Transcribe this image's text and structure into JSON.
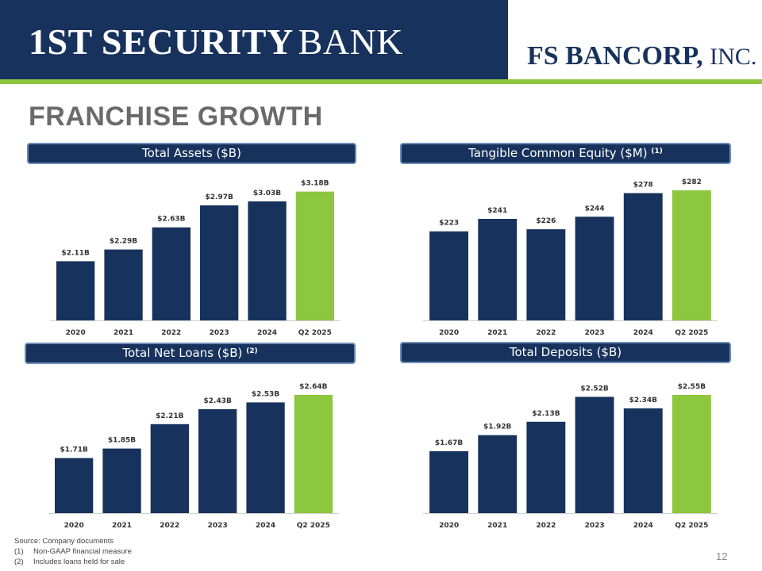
{
  "header": {
    "bank_logo_main": "1ST SECURITY",
    "bank_logo_word": "BANK",
    "corp_logo_main": "FS BANCORP,",
    "corp_logo_word": "INC."
  },
  "page_title": "FRANCHISE GROWTH",
  "colors": {
    "navy": "#17325c",
    "green": "#8dc63f",
    "header_border": "#6d8fb8"
  },
  "chart_data": [
    {
      "type": "bar",
      "title": "Total Assets ($B)",
      "title_note": "",
      "categories": [
        "2020",
        "2021",
        "2022",
        "2023",
        "2024",
        "Q2 2025"
      ],
      "values": [
        2.11,
        2.29,
        2.63,
        2.97,
        3.03,
        3.18
      ],
      "data_labels": [
        "$2.11B",
        "$2.29B",
        "$2.63B",
        "$2.97B",
        "$3.03B",
        "$3.18B"
      ],
      "highlight_last": true,
      "ylim": [
        1.2,
        3.2
      ],
      "xlabel": "",
      "ylabel": "",
      "grid": false
    },
    {
      "type": "bar",
      "title": "Tangible Common Equity ($M)",
      "title_note": "(1)",
      "categories": [
        "2020",
        "2021",
        "2022",
        "2023",
        "2024",
        "Q2 2025"
      ],
      "values": [
        223,
        241,
        226,
        244,
        278,
        282
      ],
      "data_labels": [
        "$223",
        "$241",
        "$226",
        "$244",
        "$278",
        "$282"
      ],
      "highlight_last": true,
      "ylim": [
        95,
        282
      ],
      "xlabel": "",
      "ylabel": "",
      "grid": false
    },
    {
      "type": "bar",
      "title": "Total Net Loans ($B)",
      "title_note": "(2)",
      "categories": [
        "2020",
        "2021",
        "2022",
        "2023",
        "2024",
        "Q2 2025"
      ],
      "values": [
        1.71,
        1.85,
        2.21,
        2.43,
        2.53,
        2.64
      ],
      "data_labels": [
        "$1.71B",
        "$1.85B",
        "$2.21B",
        "$2.43B",
        "$2.53B",
        "$2.64B"
      ],
      "highlight_last": true,
      "ylim": [
        0.9,
        2.64
      ],
      "xlabel": "",
      "ylabel": "",
      "grid": false
    },
    {
      "type": "bar",
      "title": "Total Deposits ($B)",
      "title_note": "",
      "categories": [
        "2020",
        "2021",
        "2022",
        "2023",
        "2024",
        "Q2 2025"
      ],
      "values": [
        1.67,
        1.92,
        2.13,
        2.52,
        2.34,
        2.55
      ],
      "data_labels": [
        "$1.67B",
        "$1.92B",
        "$2.13B",
        "$2.52B",
        "$2.34B",
        "$2.55B"
      ],
      "highlight_last": true,
      "ylim": [
        0.7,
        2.55
      ],
      "xlabel": "",
      "ylabel": "",
      "grid": false
    }
  ],
  "footnotes": {
    "source": "Source: Company documents",
    "notes": [
      {
        "num": "(1)",
        "text": "Non-GAAP financial measure"
      },
      {
        "num": "(2)",
        "text": "Includes loans held for sale"
      }
    ]
  },
  "page_number": "12"
}
